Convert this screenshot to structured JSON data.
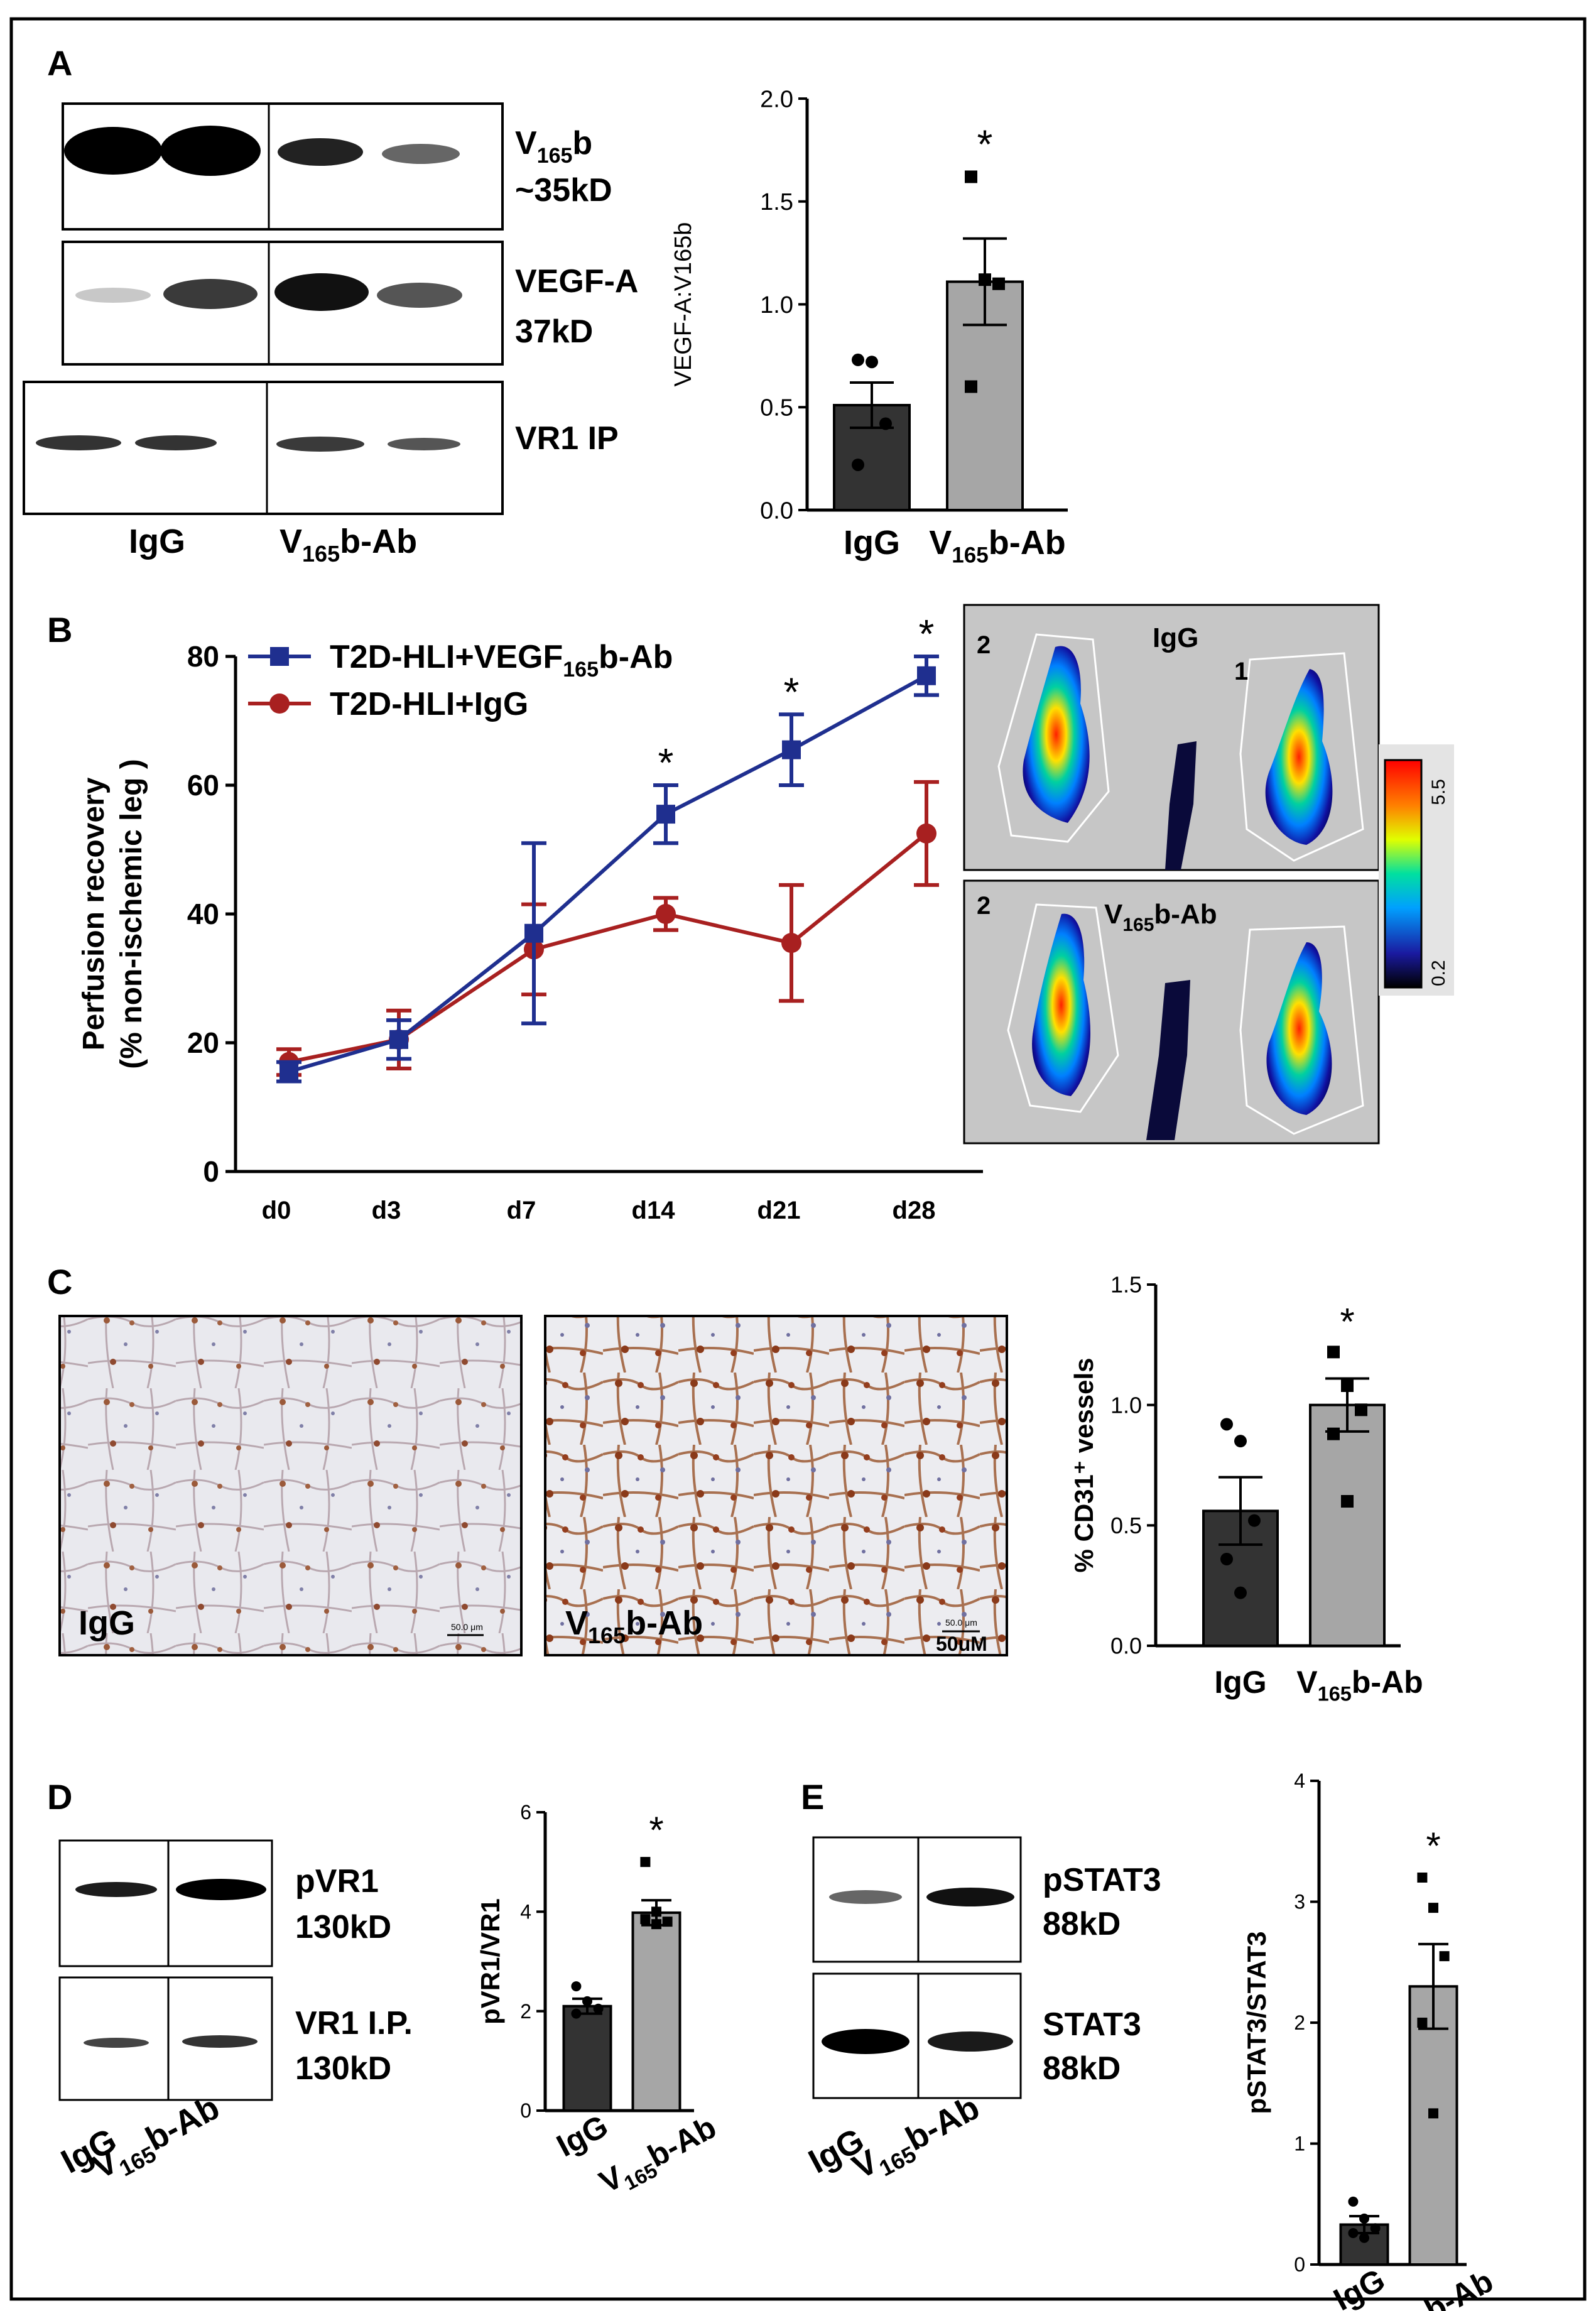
{
  "panels": {
    "A": "A",
    "B": "B",
    "C": "C",
    "D": "D",
    "E": "E"
  },
  "groups": {
    "ctrl": "IgG",
    "abBase": "V",
    "abSub": "165",
    "abSuffix": "b-Ab"
  },
  "sig": "*",
  "blotA": [
    {
      "line1": "V",
      "line1sub": "165",
      "line1suffix": "b",
      "line2": "~35kD"
    },
    {
      "line1": "VEGF-A",
      "line1sub": "",
      "line1suffix": "",
      "line2": "37kD"
    },
    {
      "line1": "VR1 IP",
      "line1sub": "",
      "line1suffix": "",
      "line2": ""
    }
  ],
  "blotD": [
    {
      "line1": "pVR1",
      "line2": "130kD"
    },
    {
      "line1": "VR1 I.P.",
      "line2": "130kD"
    }
  ],
  "blotE": [
    {
      "line1": "pSTAT3",
      "line2": "88kD"
    },
    {
      "line1": "STAT3",
      "line2": "88kD"
    }
  ],
  "laser": {
    "top_label": "IgG",
    "bottom_label_base": "V",
    "bottom_label_sub": "165",
    "bottom_label_suffix": "b-Ab",
    "leg_numbers": [
      "2",
      "1"
    ],
    "scale_max": "5.5",
    "scale_min": "0.2"
  },
  "histology": {
    "left_label": "IgG",
    "scale_text": "50.0 μm",
    "scale_text2": "50uM"
  },
  "chart_data": [
    {
      "id": "A",
      "type": "bar",
      "ylabel": "VEGF-A:V165b",
      "ylim": [
        0,
        2.0
      ],
      "yticks": [
        "0.0",
        "0.5",
        "1.0",
        "1.5",
        "2.0"
      ],
      "categories": [
        "IgG",
        "V165b-Ab"
      ],
      "values": [
        0.51,
        1.11
      ],
      "sem": [
        0.11,
        0.21
      ],
      "points": [
        [
          0.73,
          0.72,
          0.42,
          0.22
        ],
        [
          1.62,
          1.12,
          1.1,
          0.6
        ]
      ],
      "significant": [
        false,
        true
      ]
    },
    {
      "id": "B",
      "type": "line",
      "ylabel_line1": "Perfusion recovery",
      "ylabel_line2": "(% non-ischemic leg )",
      "ylim": [
        0,
        80
      ],
      "yticks": [
        "0",
        "20",
        "40",
        "60",
        "80"
      ],
      "x": [
        "d0",
        "d3",
        "d7",
        "d14",
        "d21",
        "d28"
      ],
      "series": [
        {
          "name_base": "T2D-HLI+VEGF",
          "name_sub": "165",
          "name_suffix": "b-Ab",
          "color": "#1f2f8f",
          "values": [
            15.5,
            20.5,
            37,
            55.5,
            65.5,
            77
          ],
          "err": [
            1.5,
            3,
            14,
            4.5,
            5.5,
            3
          ],
          "significant": [
            false,
            false,
            false,
            true,
            true,
            true
          ]
        },
        {
          "name_base": "T2D-HLI+IgG",
          "name_sub": "",
          "name_suffix": "",
          "color": "#a82020",
          "values": [
            17,
            20.5,
            34.5,
            40,
            35.5,
            52.5
          ],
          "err": [
            2,
            4.5,
            7,
            2.5,
            9,
            8
          ]
        }
      ]
    },
    {
      "id": "C",
      "type": "bar",
      "ylabel": "% CD31⁺ vessels",
      "ylim": [
        0,
        1.5
      ],
      "yticks": [
        "0.0",
        "0.5",
        "1.0",
        "1.5"
      ],
      "categories": [
        "IgG",
        "V165b-Ab"
      ],
      "values": [
        0.56,
        1.0
      ],
      "sem": [
        0.14,
        0.11
      ],
      "points": [
        [
          0.92,
          0.85,
          0.52,
          0.36,
          0.22
        ],
        [
          1.22,
          1.08,
          0.98,
          0.88,
          0.6
        ]
      ],
      "significant": [
        false,
        true
      ]
    },
    {
      "id": "D",
      "type": "bar",
      "ylabel": "pVR1/VR1",
      "ylim": [
        0,
        6
      ],
      "yticks": [
        "0",
        "2",
        "4",
        "6"
      ],
      "categories": [
        "IgG",
        "V165b-Ab"
      ],
      "values": [
        2.1,
        3.98
      ],
      "sem": [
        0.15,
        0.25
      ],
      "points": [
        [
          2.5,
          2.2,
          2.05,
          1.95
        ],
        [
          5.0,
          4.0,
          3.8,
          3.85,
          3.75
        ]
      ],
      "significant": [
        false,
        true
      ]
    },
    {
      "id": "E",
      "type": "bar",
      "ylabel": "pSTAT3/STAT3",
      "ylim": [
        0,
        4
      ],
      "yticks": [
        "0",
        "1",
        "2",
        "3",
        "4"
      ],
      "categories": [
        "IgG",
        "V165b-Ab"
      ],
      "values": [
        0.33,
        2.3
      ],
      "sem": [
        0.07,
        0.35
      ],
      "points": [
        [
          0.52,
          0.38,
          0.3,
          0.26,
          0.22
        ],
        [
          3.2,
          2.95,
          2.55,
          2.0,
          1.25
        ]
      ],
      "significant": [
        false,
        true
      ]
    }
  ]
}
